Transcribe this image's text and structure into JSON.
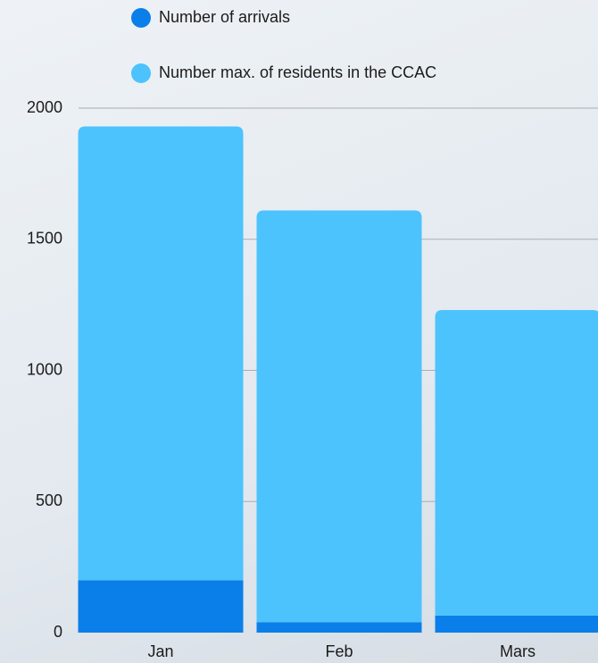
{
  "chart_data": {
    "type": "stacked-bar",
    "categories": [
      "Jan",
      "Feb",
      "Mars"
    ],
    "series": [
      {
        "name": "Number of arrivals",
        "color": "#0a7fe9",
        "values": [
          200,
          40,
          65
        ]
      },
      {
        "name": "Number max. of residents in the CCAC",
        "color": "#4cc3fd",
        "values": [
          1730,
          1570,
          1165
        ]
      }
    ],
    "ylim": [
      0,
      2000
    ],
    "yticks": [
      0,
      500,
      1000,
      1500,
      2000
    ],
    "grid": true
  }
}
